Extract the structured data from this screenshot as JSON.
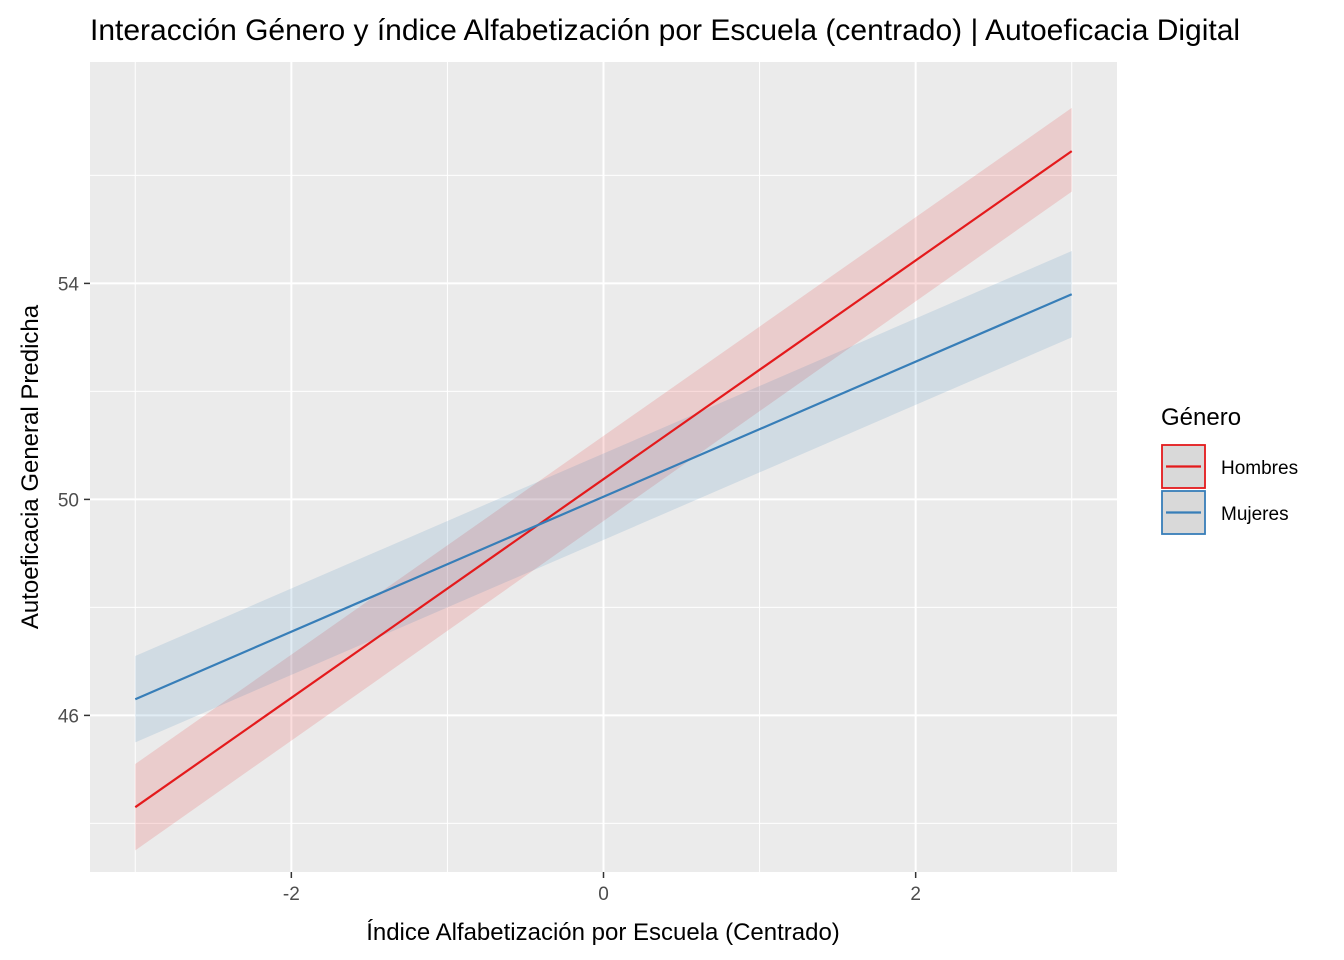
{
  "chart_data": {
    "type": "line",
    "title": "Interacción Género y índice Alfabetización por Escuela (centrado) | Autoeficacia Digital",
    "xlabel": "Índice Alfabetización por Escuela (Centrado)",
    "ylabel": "Autoeficacia General Predicha",
    "xlim": [
      -3.29,
      3.29
    ],
    "ylim": [
      43.1,
      58.1
    ],
    "x_ticks": [
      -2,
      0,
      2
    ],
    "x_tick_labels": [
      "-2",
      "0",
      "2"
    ],
    "y_ticks": [
      46,
      50,
      54
    ],
    "y_tick_labels": [
      "46",
      "50",
      "54"
    ],
    "grid": true,
    "legend": {
      "title": "Género",
      "position": "right"
    },
    "series": [
      {
        "name": "Hombres",
        "color": "#e41a1c",
        "x": [
          -3,
          3
        ],
        "y": [
          44.3,
          56.45
        ],
        "ci_lower": [
          43.5,
          55.7
        ],
        "ci_upper": [
          45.1,
          57.25
        ]
      },
      {
        "name": "Mujeres",
        "color": "#377eb8",
        "x": [
          -3,
          3
        ],
        "y": [
          46.3,
          53.8
        ],
        "ci_lower": [
          45.5,
          53.0
        ],
        "ci_upper": [
          47.1,
          54.6
        ]
      }
    ]
  }
}
